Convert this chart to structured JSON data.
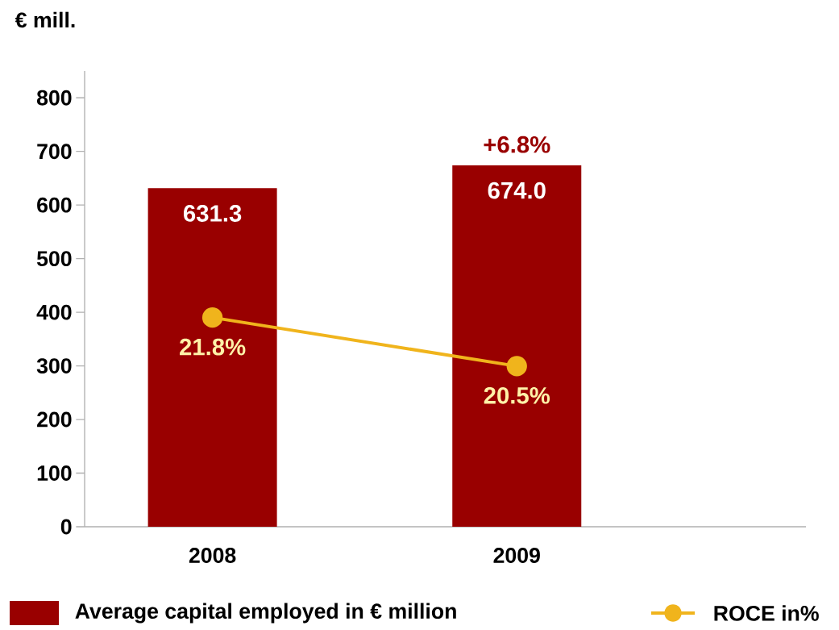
{
  "chart_data": {
    "type": "bar",
    "ylabel": "€ mill.",
    "categories": [
      "2008",
      "2009"
    ],
    "series": [
      {
        "name": "Average capital employed in € million",
        "color": "#990000",
        "values": [
          631.3,
          674.0
        ],
        "value_labels": [
          "631.3",
          "674.0"
        ]
      },
      {
        "name": "ROCE in%",
        "type": "line",
        "axis": "y2",
        "color": "#f0b41c",
        "marker": "circle",
        "values": [
          21.8,
          20.5
        ],
        "value_labels": [
          "21.8%",
          "20.5%"
        ]
      }
    ],
    "ylim": [
      0,
      850
    ],
    "yticks": [
      0,
      100,
      200,
      300,
      400,
      500,
      600,
      700,
      800
    ],
    "y2lim": [
      16.2,
      28.4
    ],
    "annotations": [
      {
        "text": "+6.8%",
        "x": "2009",
        "y": 674
      }
    ],
    "legend": "bottom",
    "grid": false
  }
}
